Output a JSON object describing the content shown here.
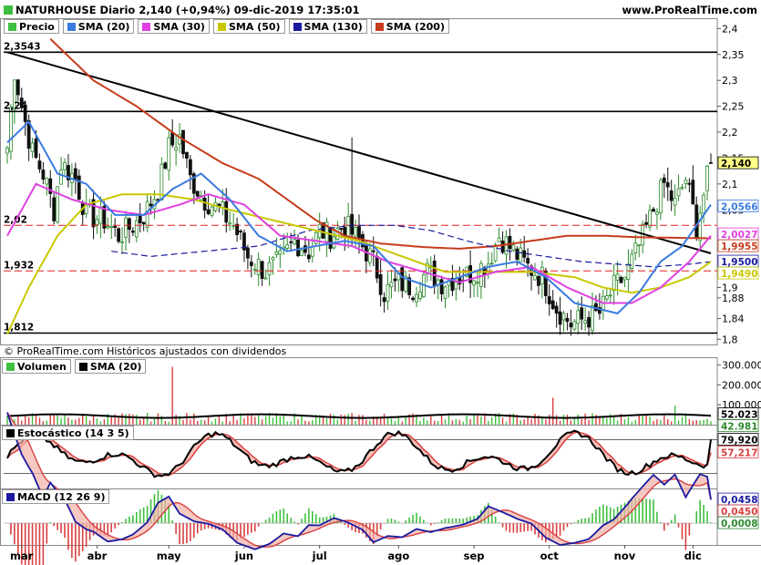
{
  "header": {
    "title": "NATURHOUSE Diario 2,140 (+0,94%) 09-dic-2019 17:35:01",
    "site": "www.ProRealTime.com"
  },
  "credit": "© ProRealTime.com  Históricos ajustados con dividendos",
  "colors": {
    "sma20": "#3a7be0",
    "sma30": "#e040e0",
    "sma50": "#c8c800",
    "sma130": "#1a1aa0",
    "sma200": "#c83c1c",
    "up": "#2d8a2d",
    "down": "#111111",
    "vol_up": "#3fbf3f",
    "vol_down": "#d94040"
  },
  "legends": {
    "price": [
      {
        "label": "Precio",
        "color": "#3fbf3f"
      },
      {
        "label": "SMA (20)",
        "color": "#3a7be0"
      },
      {
        "label": "SMA (30)",
        "color": "#e040e0"
      },
      {
        "label": "SMA (50)",
        "color": "#c8c800"
      },
      {
        "label": "SMA (130)",
        "color": "#1a1aa0"
      },
      {
        "label": "SMA (200)",
        "color": "#c83c1c"
      }
    ],
    "volume": [
      {
        "label": "Volumen",
        "color": "#3fbf3f"
      },
      {
        "label": "SMA (20)",
        "color": "#000000"
      }
    ],
    "stoch": [
      {
        "label": "Estocástico (14 3 5)",
        "color": "#000000"
      }
    ],
    "macd": [
      {
        "label": "MACD (12 26 9)",
        "color": "#1a1aa0"
      }
    ]
  },
  "chart_data": [
    {
      "type": "candlestick",
      "name": "Precio",
      "ylim": [
        1.79,
        2.42
      ],
      "y_ticks": [
        "2,4",
        "2,35",
        "2,3",
        "2,25",
        "2,2",
        "2,15",
        "2,1",
        "2,05",
        "2",
        "1,95",
        "1,9",
        "1,88",
        "1,84",
        "1,8"
      ],
      "y_tick_values": [
        2.4,
        2.35,
        2.3,
        2.25,
        2.2,
        2.15,
        2.1,
        2.05,
        2.0,
        1.95,
        1.9,
        1.88,
        1.84,
        1.8
      ],
      "x_labels": [
        "mar",
        "abr",
        "may",
        "jun",
        "jul",
        "ago",
        "sep",
        "oct",
        "nov",
        "dic"
      ],
      "x_label_index": [
        4,
        25,
        45,
        66,
        87,
        109,
        130,
        151,
        172,
        191
      ],
      "n_bars": 197,
      "close_anchors": [
        [
          0,
          2.17
        ],
        [
          2,
          2.32
        ],
        [
          4,
          2.25
        ],
        [
          7,
          2.16
        ],
        [
          10,
          2.12
        ],
        [
          13,
          2.05
        ],
        [
          15,
          2.14
        ],
        [
          19,
          2.11
        ],
        [
          22,
          2.04
        ],
        [
          27,
          2.03
        ],
        [
          31,
          2.0
        ],
        [
          35,
          2.02
        ],
        [
          38,
          2.04
        ],
        [
          42,
          2.09
        ],
        [
          45,
          2.17
        ],
        [
          48,
          2.19
        ],
        [
          51,
          2.11
        ],
        [
          55,
          2.07
        ],
        [
          59,
          2.05
        ],
        [
          63,
          2.02
        ],
        [
          67,
          1.96
        ],
        [
          72,
          1.93
        ],
        [
          76,
          1.95
        ],
        [
          80,
          1.99
        ],
        [
          84,
          1.97
        ],
        [
          87,
          2.01
        ],
        [
          90,
          2.0
        ],
        [
          94,
          2.02
        ],
        [
          98,
          1.99
        ],
        [
          102,
          1.95
        ],
        [
          105,
          1.89
        ],
        [
          109,
          1.91
        ],
        [
          113,
          1.9
        ],
        [
          117,
          1.93
        ],
        [
          121,
          1.91
        ],
        [
          126,
          1.92
        ],
        [
          130,
          1.93
        ],
        [
          134,
          1.95
        ],
        [
          137,
          2.0
        ],
        [
          141,
          1.97
        ],
        [
          145,
          1.94
        ],
        [
          149,
          1.92
        ],
        [
          153,
          1.86
        ],
        [
          157,
          1.83
        ],
        [
          161,
          1.84
        ],
        [
          165,
          1.85
        ],
        [
          169,
          1.9
        ],
        [
          172,
          1.92
        ],
        [
          176,
          1.98
        ],
        [
          180,
          2.05
        ],
        [
          183,
          2.1
        ],
        [
          186,
          2.06
        ],
        [
          189,
          2.11
        ],
        [
          192,
          2.02
        ],
        [
          196,
          2.14
        ]
      ],
      "sma20_anchors": [
        [
          0,
          2.18
        ],
        [
          6,
          2.22
        ],
        [
          14,
          2.12
        ],
        [
          22,
          2.1
        ],
        [
          30,
          2.04
        ],
        [
          38,
          2.04
        ],
        [
          46,
          2.09
        ],
        [
          54,
          2.12
        ],
        [
          62,
          2.07
        ],
        [
          70,
          2.0
        ],
        [
          78,
          1.97
        ],
        [
          86,
          1.98
        ],
        [
          94,
          1.99
        ],
        [
          102,
          1.98
        ],
        [
          110,
          1.92
        ],
        [
          118,
          1.9
        ],
        [
          126,
          1.92
        ],
        [
          134,
          1.94
        ],
        [
          142,
          1.95
        ],
        [
          150,
          1.92
        ],
        [
          158,
          1.87
        ],
        [
          164,
          1.86
        ],
        [
          170,
          1.85
        ],
        [
          176,
          1.89
        ],
        [
          182,
          1.95
        ],
        [
          188,
          1.98
        ],
        [
          196,
          2.06
        ]
      ],
      "sma30_anchors": [
        [
          0,
          2.0
        ],
        [
          8,
          2.1
        ],
        [
          18,
          2.07
        ],
        [
          28,
          2.05
        ],
        [
          38,
          2.04
        ],
        [
          48,
          2.06
        ],
        [
          56,
          2.08
        ],
        [
          66,
          2.06
        ],
        [
          76,
          2.0
        ],
        [
          86,
          1.99
        ],
        [
          96,
          1.98
        ],
        [
          106,
          1.95
        ],
        [
          116,
          1.93
        ],
        [
          126,
          1.91
        ],
        [
          136,
          1.93
        ],
        [
          146,
          1.94
        ],
        [
          156,
          1.9
        ],
        [
          166,
          1.87
        ],
        [
          174,
          1.87
        ],
        [
          182,
          1.9
        ],
        [
          190,
          1.95
        ],
        [
          196,
          2.0
        ]
      ],
      "sma50_anchors": [
        [
          0,
          1.81
        ],
        [
          6,
          1.9
        ],
        [
          14,
          2.0
        ],
        [
          22,
          2.06
        ],
        [
          32,
          2.08
        ],
        [
          42,
          2.08
        ],
        [
          52,
          2.07
        ],
        [
          62,
          2.05
        ],
        [
          74,
          2.03
        ],
        [
          86,
          2.01
        ],
        [
          98,
          1.99
        ],
        [
          110,
          1.96
        ],
        [
          122,
          1.93
        ],
        [
          134,
          1.93
        ],
        [
          146,
          1.93
        ],
        [
          158,
          1.92
        ],
        [
          166,
          1.9
        ],
        [
          174,
          1.89
        ],
        [
          182,
          1.9
        ],
        [
          190,
          1.92
        ],
        [
          196,
          1.95
        ]
      ],
      "sma130_anchors": [
        [
          29,
          1.97
        ],
        [
          40,
          1.96
        ],
        [
          55,
          1.97
        ],
        [
          70,
          1.98
        ],
        [
          84,
          2.01
        ],
        [
          96,
          2.02
        ],
        [
          108,
          2.02
        ],
        [
          118,
          2.01
        ],
        [
          128,
          1.99
        ],
        [
          140,
          1.97
        ],
        [
          150,
          1.96
        ],
        [
          160,
          1.95
        ],
        [
          170,
          1.945
        ],
        [
          180,
          1.94
        ],
        [
          190,
          1.945
        ],
        [
          196,
          1.95
        ]
      ],
      "sma200_anchors": [
        [
          12,
          2.38
        ],
        [
          24,
          2.3
        ],
        [
          36,
          2.25
        ],
        [
          48,
          2.19
        ],
        [
          60,
          2.14
        ],
        [
          70,
          2.11
        ],
        [
          78,
          2.07
        ],
        [
          86,
          2.03
        ],
        [
          94,
          2.0
        ],
        [
          104,
          1.985
        ],
        [
          116,
          1.978
        ],
        [
          126,
          1.975
        ],
        [
          136,
          1.98
        ],
        [
          146,
          1.99
        ],
        [
          156,
          2.0
        ],
        [
          166,
          2.0
        ],
        [
          176,
          1.997
        ],
        [
          186,
          1.996
        ],
        [
          196,
          1.995
        ]
      ],
      "levels": [
        {
          "label": "2,3543",
          "value": 2.3543,
          "style": "solid"
        },
        {
          "label": "2,24",
          "value": 2.24,
          "style": "solid"
        },
        {
          "label": "2,02",
          "value": 2.02,
          "style": "dashed"
        },
        {
          "label": "1,932",
          "value": 1.932,
          "style": "dashed"
        },
        {
          "label": "1,812",
          "value": 1.812,
          "style": "solid"
        }
      ],
      "trendline": [
        [
          0,
          2.3543
        ],
        [
          196,
          1.966
        ]
      ],
      "value_boxes": [
        {
          "label": "2,140",
          "value": 2.14,
          "bg": "#ffff88",
          "fg": "#000000"
        },
        {
          "label": "2,0566",
          "value": 2.0566,
          "bg": "#ffffff",
          "fg": "#3a7be0"
        },
        {
          "label": "2,0027",
          "value": 2.0027,
          "bg": "#ffffff",
          "fg": "#e040e0"
        },
        {
          "label": "1,9955",
          "value": 1.9955,
          "bg": "#ffffff",
          "fg": "#c83c1c"
        },
        {
          "label": "1,9500",
          "value": 1.95,
          "bg": "#ffffff",
          "fg": "#1a1aa0"
        },
        {
          "label": "1,9490",
          "value": 1.949,
          "bg": "#ffffff",
          "fg": "#c8c800"
        }
      ]
    },
    {
      "type": "bar",
      "name": "Volumen",
      "ylim": [
        0,
        320000
      ],
      "y_ticks": [
        "300.000",
        "200.000",
        "100.000"
      ],
      "y_tick_values": [
        300000,
        200000,
        100000
      ],
      "sma20_value": 42981,
      "last_value": 52023,
      "spikes": [
        [
          46,
          290000
        ],
        [
          152,
          135000
        ],
        [
          186,
          95000
        ]
      ],
      "value_boxes": [
        {
          "label": "52.023",
          "value": 52023,
          "bg": "#ffffff",
          "fg": "#000000"
        },
        {
          "label": "42.981",
          "value": 42981,
          "bg": "#ffffff",
          "fg": "#2d8a2d"
        }
      ]
    },
    {
      "type": "line",
      "name": "Estocástico (14 3 5)",
      "ylim": [
        0,
        100
      ],
      "bands": [
        20,
        80
      ],
      "value_boxes": [
        {
          "label": "79,920",
          "value": 79.92,
          "bg": "#ffffff",
          "fg": "#000000"
        },
        {
          "label": "57,217",
          "value": 57.217,
          "bg": "#ffffff",
          "fg": "#d94040"
        }
      ]
    },
    {
      "type": "line",
      "name": "MACD (12 26 9)",
      "ylim": [
        -0.035,
        0.06
      ],
      "value_boxes": [
        {
          "label": "0,0458",
          "value": 0.0458,
          "bg": "#ffffff",
          "fg": "#1a1aa0"
        },
        {
          "label": "0,0450",
          "value": 0.045,
          "bg": "#ffffff",
          "fg": "#d94040"
        },
        {
          "label": "0,0008",
          "value": 0.0008,
          "bg": "#ffffff",
          "fg": "#2d8a2d"
        }
      ]
    }
  ]
}
